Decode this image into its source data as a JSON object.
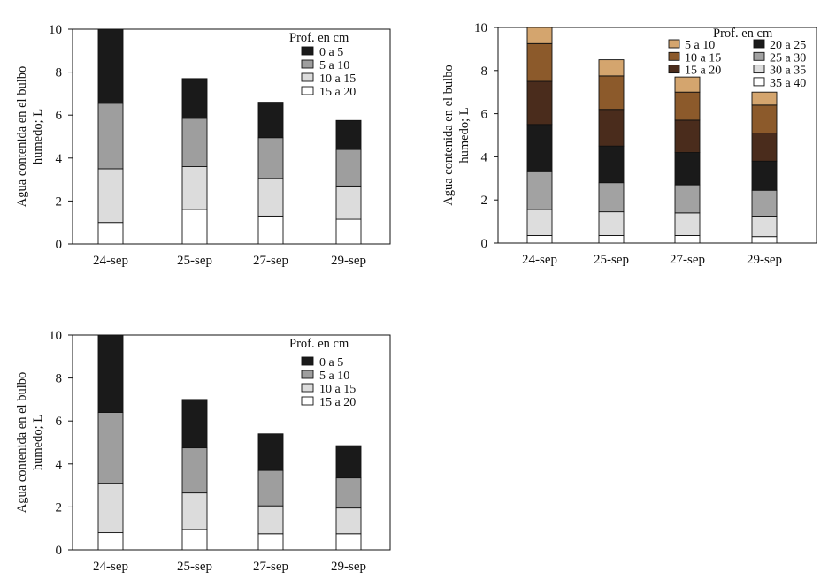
{
  "colors": {
    "black": "#1a1a1a",
    "darkgray": "#9e9e9e",
    "lightgray": "#dcdcdc",
    "white": "#ffffff",
    "tan": "#d4a56e",
    "brown": "#8c5a2b",
    "darkbrown": "#4a2c1c",
    "midgray": "#a2a2a2",
    "palegray": "#dddddd"
  },
  "chart_data": [
    {
      "type": "bar",
      "stacked": true,
      "title": "",
      "xlabel": "",
      "ylabel": "Agua contenida en el bulbo humedo; L",
      "ylabel_lines": [
        "Agua contenida en el bulbo",
        "humedo; L"
      ],
      "ylim": [
        0,
        10
      ],
      "yticks": [
        "0",
        "2",
        "4",
        "6",
        "8",
        "10"
      ],
      "categories": [
        "24-sep",
        "25-sep",
        "27-sep",
        "29-sep"
      ],
      "legend_title": "Prof. en cm",
      "legend_order": [
        0,
        1,
        2,
        3
      ],
      "series": [
        {
          "name": "15 a 20",
          "color_key": "white",
          "values": [
            1.0,
            1.6,
            1.3,
            1.15
          ]
        },
        {
          "name": "10 a 15",
          "color_key": "lightgray",
          "values": [
            2.5,
            2.0,
            1.75,
            1.55
          ]
        },
        {
          "name": "5 a 10",
          "color_key": "darkgray",
          "values": [
            3.05,
            2.25,
            1.9,
            1.7
          ]
        },
        {
          "name": "0 a 5",
          "color_key": "black",
          "values": [
            3.45,
            1.85,
            1.65,
            1.35
          ]
        }
      ]
    },
    {
      "type": "bar",
      "stacked": true,
      "title": "",
      "xlabel": "",
      "ylabel": "Agua contenida en el bulbo humedo; L",
      "ylabel_lines": [
        "Agua contenida en el bulbo",
        "humedo; L"
      ],
      "ylim": [
        0,
        10
      ],
      "yticks": [
        "0",
        "2",
        "4",
        "6",
        "8",
        "10"
      ],
      "categories": [
        "24-sep",
        "25-sep",
        "27-sep",
        "29-sep"
      ],
      "legend_title": "Prof. en cm",
      "legend_order": [
        1,
        2,
        3,
        4,
        5,
        6
      ],
      "series": [
        {
          "name": "35 a 40",
          "color_key": "white",
          "values": [
            0.35,
            0.35,
            0.35,
            0.3
          ]
        },
        {
          "name": "30 a 35",
          "color_key": "palegray",
          "values": [
            1.2,
            1.1,
            1.05,
            0.95
          ]
        },
        {
          "name": "25 a 30",
          "color_key": "midgray",
          "values": [
            1.8,
            1.35,
            1.3,
            1.2
          ]
        },
        {
          "name": "20 a 25",
          "color_key": "black",
          "values": [
            2.15,
            1.7,
            1.5,
            1.35
          ]
        },
        {
          "name": "15 a 20",
          "color_key": "darkbrown",
          "values": [
            2.0,
            1.7,
            1.5,
            1.3
          ]
        },
        {
          "name": "10 a 15",
          "color_key": "brown",
          "values": [
            1.75,
            1.55,
            1.3,
            1.3
          ]
        },
        {
          "name": "5 a 10",
          "color_key": "tan",
          "values": [
            0.75,
            0.75,
            0.7,
            0.6
          ]
        }
      ]
    },
    {
      "type": "bar",
      "stacked": true,
      "title": "",
      "xlabel": "",
      "ylabel": "Agua contenida en el bulbo humedo; L",
      "ylabel_lines": [
        "Agua contenida en el bulbo",
        "humedo; L"
      ],
      "ylim": [
        0,
        10
      ],
      "yticks": [
        "0",
        "2",
        "4",
        "6",
        "8",
        "10"
      ],
      "categories": [
        "24-sep",
        "25-sep",
        "27-sep",
        "29-sep"
      ],
      "legend_title": "Prof. en cm",
      "legend_order": [
        0,
        1,
        2,
        3
      ],
      "series": [
        {
          "name": "15 a 20",
          "color_key": "white",
          "values": [
            0.8,
            0.95,
            0.75,
            0.75
          ]
        },
        {
          "name": "10 a 15",
          "color_key": "lightgray",
          "values": [
            2.3,
            1.7,
            1.3,
            1.2
          ]
        },
        {
          "name": "5 a 10",
          "color_key": "darkgray",
          "values": [
            3.3,
            2.1,
            1.65,
            1.4
          ]
        },
        {
          "name": "0 a 5",
          "color_key": "black",
          "values": [
            3.6,
            2.25,
            1.7,
            1.5
          ]
        }
      ]
    }
  ]
}
